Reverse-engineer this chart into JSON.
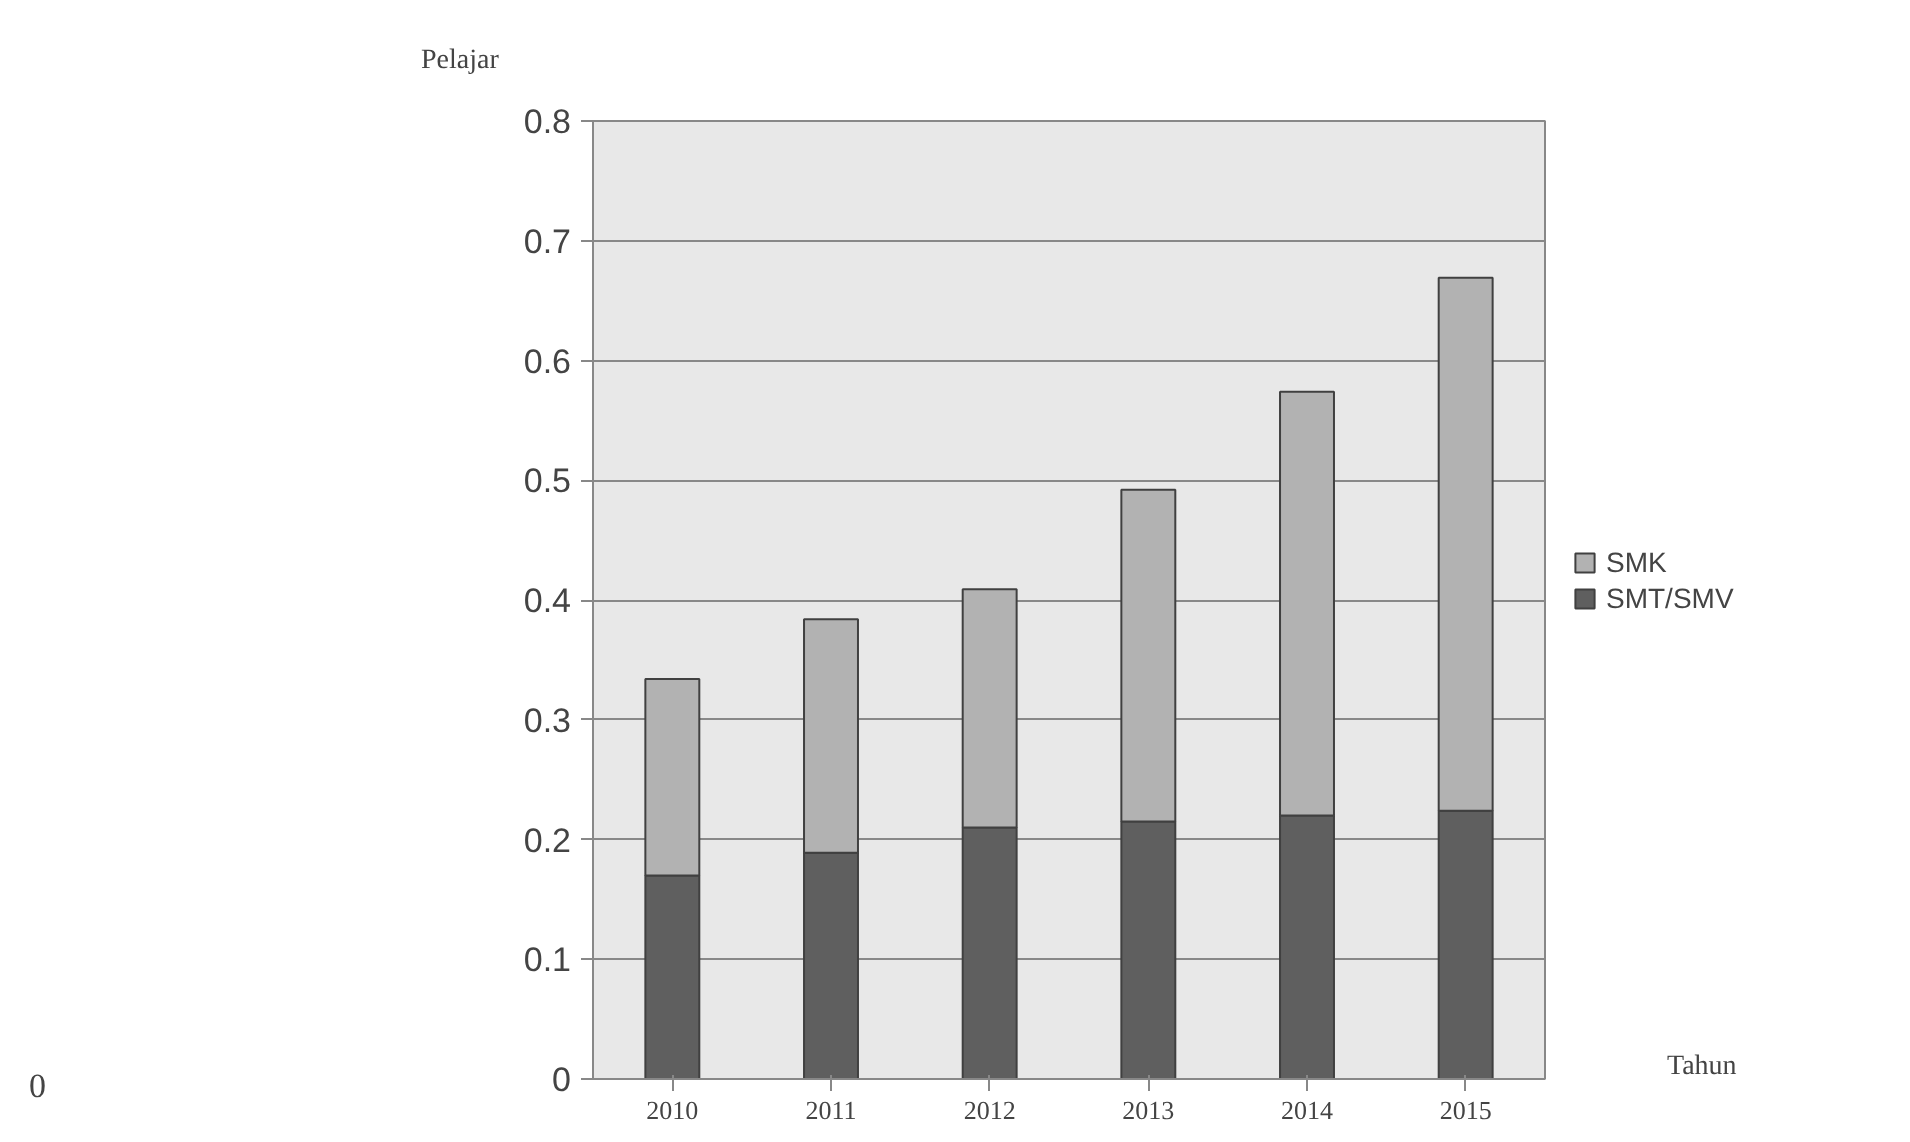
{
  "chart_data": {
    "type": "bar",
    "stacked": true,
    "categories": [
      "2010",
      "2011",
      "2012",
      "2013",
      "2014",
      "2015"
    ],
    "series": [
      {
        "name": "SMT/SMV",
        "color": "#5f5f5f",
        "values": [
          0.17,
          0.189,
          0.21,
          0.215,
          0.22,
          0.224
        ]
      },
      {
        "name": "SMK",
        "color": "#b2b2b2",
        "values": [
          0.164,
          0.195,
          0.199,
          0.277,
          0.354,
          0.445
        ]
      }
    ],
    "xlabel": "Tahun",
    "ylabel": "Pelajar",
    "ylim": [
      0,
      0.8
    ],
    "yticks": [
      0,
      0.1,
      0.2,
      0.3,
      0.4,
      0.5,
      0.6,
      0.7,
      0.8
    ],
    "grid": "y",
    "legend": "right",
    "annotations": [
      "0"
    ]
  }
}
